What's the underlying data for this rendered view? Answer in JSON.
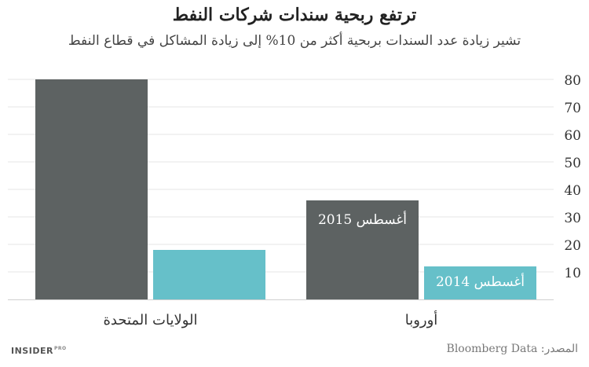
{
  "chart_data": {
    "type": "bar",
    "title": "ترتفع ربحية سندات شركات النفط",
    "subtitle": "تشير زيادة عدد السندات بربحية أكثر من 10% إلى زيادة المشاكل في قطاع النفط",
    "categories": [
      "الولايات المتحدة",
      "أوروبا"
    ],
    "series": [
      {
        "name": "أغسطس 2015",
        "values": [
          80,
          36
        ],
        "color": "#5d6262"
      },
      {
        "name": "أغسطس 2014",
        "values": [
          18,
          12
        ],
        "color": "#66c0c9"
      }
    ],
    "yticks": [
      10,
      20,
      30,
      40,
      50,
      60,
      70,
      80
    ],
    "ylim": [
      0,
      80
    ],
    "grid": true,
    "legend": "inside-bars (Europe)"
  },
  "footer": {
    "brand": "INSIDER",
    "brand_suffix": "PRO",
    "source": "المصدر: Bloomberg Data"
  }
}
